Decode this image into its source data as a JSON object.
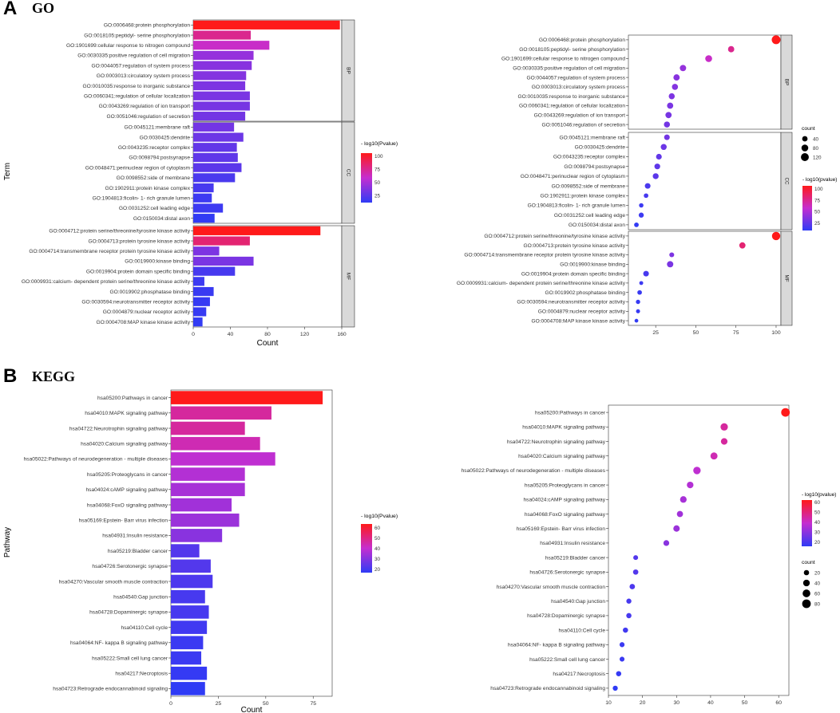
{
  "panels": {
    "a": {
      "letter": "A",
      "title": "GO"
    },
    "b": {
      "letter": "B",
      "title": "KEGG"
    }
  },
  "colors": {
    "low": "#2f3bf5",
    "mid": "#c52ed0",
    "high": "#ff1a1a",
    "strip": "#d9d9d9"
  },
  "chart_data": [
    {
      "type": "bar",
      "id": "go-bar",
      "title": "GO",
      "xlabel": "Count",
      "ylabel": "Term",
      "xlim": [
        0,
        160
      ],
      "xticks": [
        0,
        40,
        80,
        120,
        160
      ],
      "legend": {
        "title": "- log10(Pvalue)",
        "ticks": [
          25,
          50,
          75,
          100
        ],
        "range": [
          12,
          100
        ]
      },
      "facets": [
        {
          "name": "BP",
          "terms": [
            {
              "label": "GO:0006468:protein phosphorylation",
              "count": 158,
              "logp": 100
            },
            {
              "label": "GO:0018105:peptidyl- serine phosphorylation",
              "count": 62,
              "logp": 72
            },
            {
              "label": "GO:1901699:cellular response to nitrogen compound",
              "count": 82,
              "logp": 58
            },
            {
              "label": "GO:0030335:positive regulation of cell migration",
              "count": 65,
              "logp": 42
            },
            {
              "label": "GO:0044057:regulation of system process",
              "count": 63,
              "logp": 38
            },
            {
              "label": "GO:0003013:circulatory system process",
              "count": 57,
              "logp": 37
            },
            {
              "label": "GO:0010035:response to inorganic substance",
              "count": 56,
              "logp": 35
            },
            {
              "label": "GO:0060341:regulation of cellular localization",
              "count": 61,
              "logp": 34
            },
            {
              "label": "GO:0043269:regulation of ion transport",
              "count": 61,
              "logp": 33
            },
            {
              "label": "GO:0051046:regulation of secretion",
              "count": 56,
              "logp": 32
            }
          ]
        },
        {
          "name": "CC",
          "terms": [
            {
              "label": "GO:0045121:membrane raft",
              "count": 44,
              "logp": 32
            },
            {
              "label": "GO:0030425:dendrite",
              "count": 54,
              "logp": 30
            },
            {
              "label": "GO:0043235:receptor complex",
              "count": 47,
              "logp": 27
            },
            {
              "label": "GO:0098794:postsynapse",
              "count": 48,
              "logp": 26
            },
            {
              "label": "GO:0048471:perinuclear region of cytoplasm",
              "count": 52,
              "logp": 25
            },
            {
              "label": "GO:0098552:side of membrane",
              "count": 45,
              "logp": 20
            },
            {
              "label": "GO:1902911:protein kinase complex",
              "count": 22,
              "logp": 19
            },
            {
              "label": "GO:1904813:ficolin- 1- rich granule lumen",
              "count": 20,
              "logp": 16
            },
            {
              "label": "GO:0031252:cell leading edge",
              "count": 32,
              "logp": 16
            },
            {
              "label": "GO:0150034:distal axon",
              "count": 23,
              "logp": 13
            }
          ]
        },
        {
          "name": "MF",
          "terms": [
            {
              "label": "GO:0004712:protein serine/threonine/tyrosine kinase activity",
              "count": 137,
              "logp": 100
            },
            {
              "label": "GO:0004713:protein tyrosine kinase activity",
              "count": 61,
              "logp": 79
            },
            {
              "label": "GO:0004714:transmembrane receptor protein tyrosine kinase activity",
              "count": 28,
              "logp": 35
            },
            {
              "label": "GO:0019900:kinase binding",
              "count": 65,
              "logp": 34
            },
            {
              "label": "GO:0019904:protein domain specific binding",
              "count": 45,
              "logp": 19
            },
            {
              "label": "GO:0009931:calcium- dependent protein serine/threonine kinase activity",
              "count": 12,
              "logp": 16
            },
            {
              "label": "GO:0019902:phosphatase binding",
              "count": 22,
              "logp": 15
            },
            {
              "label": "GO:0030594:neurotransmitter receptor activity",
              "count": 18,
              "logp": 14
            },
            {
              "label": "GO:0004879:nuclear receptor activity",
              "count": 14,
              "logp": 14
            },
            {
              "label": "GO:0004708:MAP kinase kinase activity",
              "count": 10,
              "logp": 13
            }
          ]
        }
      ]
    },
    {
      "type": "scatter",
      "id": "go-dot",
      "xlim": [
        8,
        103
      ],
      "xticks": [
        25,
        50,
        75,
        100
      ],
      "legend": {
        "title": "- log10(pvalue)",
        "ticks": [
          25,
          50,
          75,
          100
        ],
        "size_title": "count",
        "size_ticks": [
          40,
          80,
          120
        ]
      },
      "facets_ref": "go-bar"
    },
    {
      "type": "bar",
      "id": "kegg-bar",
      "title": "KEGG",
      "xlabel": "Count",
      "ylabel": "Pathway",
      "xlim": [
        0,
        85
      ],
      "xticks": [
        0,
        25,
        50,
        75
      ],
      "legend": {
        "title": "- log10(Pvalue)",
        "ticks": [
          20,
          30,
          40,
          50,
          60
        ],
        "range": [
          12,
          62
        ]
      },
      "terms": [
        {
          "label": "hsa05200:Pathways in cancer",
          "count": 80,
          "logp": 62
        },
        {
          "label": "hsa04010:MAPK signaling pathway",
          "count": 53,
          "logp": 44
        },
        {
          "label": "hsa04722:Neurotrophin signaling pathway",
          "count": 39,
          "logp": 44
        },
        {
          "label": "hsa04020:Calcium signaling pathway",
          "count": 47,
          "logp": 41
        },
        {
          "label": "hsa05022:Pathways of neurodegeneration -  multiple diseases",
          "count": 55,
          "logp": 36
        },
        {
          "label": "hsa05205:Proteoglycans in cancer",
          "count": 39,
          "logp": 34
        },
        {
          "label": "hsa04024:cAMP signaling pathway",
          "count": 39,
          "logp": 32
        },
        {
          "label": "hsa04068:FoxO signaling pathway",
          "count": 32,
          "logp": 31
        },
        {
          "label": "hsa05169:Epstein- Barr virus infection",
          "count": 36,
          "logp": 30
        },
        {
          "label": "hsa04931:Insulin resistance",
          "count": 27,
          "logp": 27
        },
        {
          "label": "hsa05219:Bladder cancer",
          "count": 15,
          "logp": 18
        },
        {
          "label": "hsa04726:Serotonergic synapse",
          "count": 21,
          "logp": 18
        },
        {
          "label": "hsa04270:Vascular smooth muscle contraction",
          "count": 22,
          "logp": 17
        },
        {
          "label": "hsa04540:Gap junction",
          "count": 18,
          "logp": 16
        },
        {
          "label": "hsa04728:Dopaminergic synapse",
          "count": 20,
          "logp": 16
        },
        {
          "label": "hsa04110:Cell cycle",
          "count": 19,
          "logp": 15
        },
        {
          "label": "hsa04064:NF- kappa B signaling pathway",
          "count": 17,
          "logp": 14
        },
        {
          "label": "hsa05222:Small cell lung cancer",
          "count": 16,
          "logp": 14
        },
        {
          "label": "hsa04217:Necroptosis",
          "count": 19,
          "logp": 13
        },
        {
          "label": "hsa04723:Retrograde endocannabinoid signaling",
          "count": 18,
          "logp": 12
        }
      ]
    },
    {
      "type": "scatter",
      "id": "kegg-dot",
      "xlim": [
        10,
        63
      ],
      "xticks": [
        10,
        20,
        30,
        40,
        50,
        60
      ],
      "legend": {
        "title": "- log10(pvalue)",
        "ticks": [
          20,
          30,
          40,
          50,
          60
        ],
        "size_title": "count",
        "size_ticks": [
          20,
          40,
          60,
          80
        ]
      },
      "terms_ref": "kegg-bar"
    }
  ]
}
